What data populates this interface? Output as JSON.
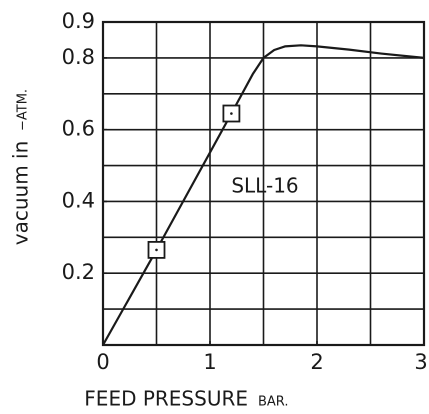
{
  "chart_data": {
    "type": "line",
    "xlabel": "FEED PRESSURE",
    "xlabel_unit": "BAR.",
    "ylabel": "vacuum in",
    "ylabel_unit": "−ATM.",
    "annotation": "SLL-16",
    "xlim": [
      0,
      3
    ],
    "ylim": [
      0,
      0.9
    ],
    "xticks": [
      0,
      1,
      2,
      3
    ],
    "yticks": [
      0.2,
      0.4,
      0.6,
      0.8,
      0.9
    ],
    "xgrid": [
      0.5,
      1,
      1.5,
      2,
      2.5
    ],
    "ygrid": [
      0.1,
      0.2,
      0.3,
      0.4,
      0.5,
      0.6,
      0.7,
      0.8
    ],
    "grid": true,
    "color": "#1a1a1a",
    "series": [
      {
        "x": [
          0,
          0.5,
          1.2,
          1.4,
          1.5,
          1.6,
          1.7,
          1.85,
          2.0,
          2.3,
          2.6,
          3.0
        ],
        "values": [
          0,
          0.265,
          0.645,
          0.755,
          0.8,
          0.822,
          0.832,
          0.835,
          0.832,
          0.823,
          0.812,
          0.8
        ]
      }
    ],
    "markers": {
      "x": [
        0.5,
        1.2
      ],
      "values": [
        0.265,
        0.645
      ]
    }
  }
}
